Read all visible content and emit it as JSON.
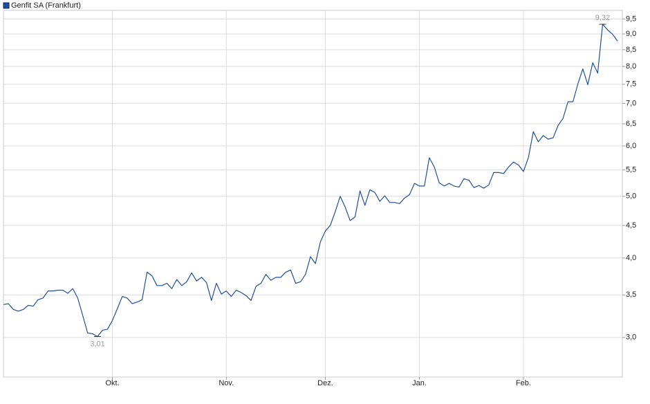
{
  "chart_data": {
    "type": "line",
    "yscale": "log",
    "grid": true,
    "legend": "top-left",
    "categories": [
      null,
      null,
      null,
      null,
      null,
      null,
      null,
      null,
      null,
      null,
      null,
      null,
      null,
      null,
      null,
      null,
      null,
      null,
      null,
      null,
      null,
      null,
      "Okt.",
      null,
      null,
      null,
      null,
      null,
      null,
      null,
      null,
      null,
      null,
      null,
      null,
      null,
      null,
      null,
      null,
      null,
      null,
      null,
      null,
      null,
      null,
      "Nov.",
      null,
      null,
      null,
      null,
      null,
      null,
      null,
      null,
      null,
      null,
      null,
      null,
      null,
      null,
      null,
      null,
      null,
      null,
      null,
      "Dez.",
      null,
      null,
      null,
      null,
      null,
      null,
      null,
      null,
      null,
      null,
      null,
      null,
      null,
      null,
      null,
      null,
      null,
      null,
      "Jan.",
      null,
      null,
      null,
      null,
      null,
      null,
      null,
      null,
      null,
      null,
      null,
      null,
      null,
      null,
      null,
      null,
      null,
      null,
      null,
      null,
      "Feb.",
      null,
      null,
      null,
      null,
      null,
      null,
      null,
      null,
      null,
      null,
      null,
      null,
      null,
      null,
      null,
      null,
      null,
      null,
      null
    ],
    "series": [
      {
        "name": "Genfit SA (Frankfurt)",
        "color": "#1f4e9a",
        "values": [
          3.38,
          3.39,
          3.32,
          3.3,
          3.32,
          3.37,
          3.36,
          3.44,
          3.46,
          3.55,
          3.55,
          3.56,
          3.56,
          3.52,
          3.58,
          3.46,
          3.25,
          3.05,
          3.04,
          3.01,
          3.08,
          3.09,
          3.19,
          3.33,
          3.48,
          3.46,
          3.39,
          3.41,
          3.44,
          3.8,
          3.75,
          3.62,
          3.62,
          3.65,
          3.58,
          3.7,
          3.62,
          3.67,
          3.79,
          3.68,
          3.73,
          3.66,
          3.43,
          3.65,
          3.51,
          3.55,
          3.48,
          3.56,
          3.53,
          3.49,
          3.43,
          3.61,
          3.65,
          3.77,
          3.69,
          3.73,
          3.73,
          3.8,
          3.83,
          3.65,
          3.67,
          3.77,
          4.02,
          3.92,
          4.24,
          4.41,
          4.5,
          4.73,
          5.0,
          4.81,
          4.58,
          4.64,
          5.1,
          4.84,
          5.12,
          5.07,
          4.91,
          5.01,
          4.89,
          4.89,
          4.87,
          4.97,
          5.03,
          5.24,
          5.19,
          5.19,
          5.75,
          5.56,
          5.25,
          5.19,
          5.24,
          5.19,
          5.17,
          5.33,
          5.3,
          5.16,
          5.2,
          5.15,
          5.21,
          5.45,
          5.45,
          5.43,
          5.56,
          5.66,
          5.6,
          5.47,
          5.75,
          6.32,
          6.09,
          6.23,
          6.15,
          6.18,
          6.46,
          6.63,
          7.04,
          7.04,
          7.51,
          7.93,
          7.49,
          8.11,
          7.81,
          9.32,
          9.13,
          8.99,
          8.77
        ],
        "value_labels": [
          null,
          null,
          null,
          null,
          null,
          null,
          null,
          null,
          null,
          null,
          null,
          null,
          null,
          null,
          null,
          null,
          null,
          null,
          null,
          "3,01",
          null,
          null,
          null,
          null,
          null,
          null,
          null,
          null,
          null,
          null,
          null,
          null,
          null,
          null,
          null,
          null,
          null,
          null,
          null,
          null,
          null,
          null,
          null,
          null,
          null,
          null,
          null,
          null,
          null,
          null,
          null,
          null,
          null,
          null,
          null,
          null,
          null,
          null,
          null,
          null,
          null,
          null,
          null,
          null,
          null,
          null,
          null,
          null,
          null,
          null,
          null,
          null,
          null,
          null,
          null,
          null,
          null,
          null,
          null,
          null,
          null,
          null,
          null,
          null,
          null,
          null,
          null,
          null,
          null,
          null,
          null,
          null,
          null,
          null,
          null,
          null,
          null,
          null,
          null,
          null,
          null,
          null,
          null,
          null,
          null,
          null,
          null,
          null,
          null,
          null,
          null,
          null,
          null,
          null,
          null,
          null,
          null,
          null,
          null,
          null,
          null,
          "9,32",
          null,
          null,
          null
        ]
      }
    ],
    "ylim": [
      2.6,
      9.8
    ],
    "yticks": [
      {
        "value": 3,
        "label": "3,0"
      },
      {
        "value": 3.5,
        "label": "3,5"
      },
      {
        "value": 4,
        "label": "4,0"
      },
      {
        "value": 4.5,
        "label": "4,5"
      },
      {
        "value": 5,
        "label": "5,0"
      },
      {
        "value": 5.5,
        "label": "5,5"
      },
      {
        "value": 6,
        "label": "6,0"
      },
      {
        "value": 6.5,
        "label": "6,5"
      },
      {
        "value": 7,
        "label": "7,0"
      },
      {
        "value": 7.5,
        "label": "7,5"
      },
      {
        "value": 8,
        "label": "8,0"
      },
      {
        "value": 8.5,
        "label": "8,5"
      },
      {
        "value": 9,
        "label": "9,0"
      },
      {
        "value": 9.5,
        "label": "9,5"
      }
    ]
  }
}
